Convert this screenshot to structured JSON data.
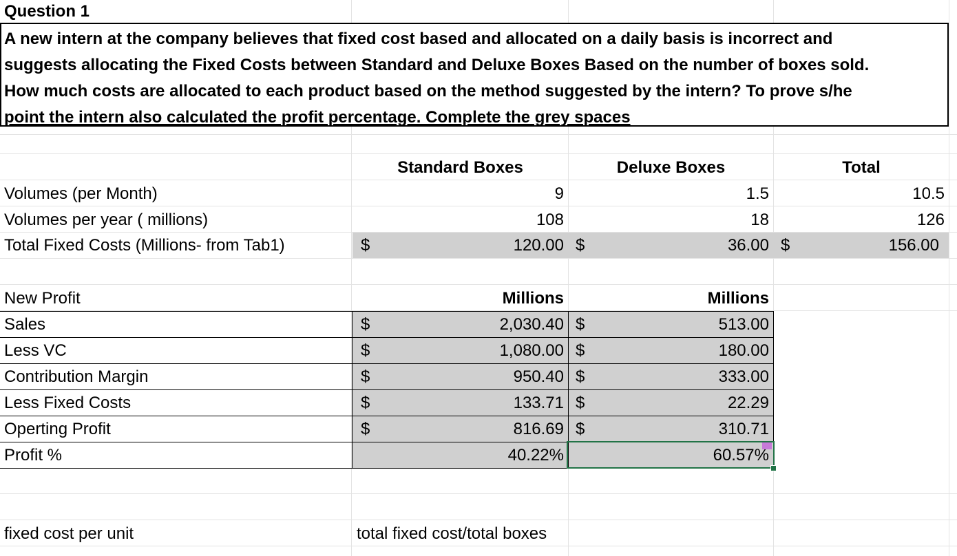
{
  "question": {
    "title": "Question 1",
    "line1": "A new intern at the company believes that fixed cost based and allocated on a daily basis is incorrect and",
    "line2": "suggests allocating the Fixed Costs between Standard  and Deluxe Boxes Based on the number of boxes sold.",
    "line3": "How much costs are allocated to each product based on the method suggested by the intern?  To prove s/he",
    "line4": "point the intern also calculated the profit percentage.   Complete the grey spaces"
  },
  "headers": {
    "standard": "Standard Boxes",
    "deluxe": "Deluxe Boxes",
    "total": "Total"
  },
  "volumes": {
    "month_label": "Volumes (per Month)",
    "month_standard": "9",
    "month_deluxe": "1.5",
    "month_total": "10.5",
    "year_label": "Volumes per year  ( millions)",
    "year_standard": "108",
    "year_deluxe": "18",
    "year_total": "126",
    "fixed_label": "Total Fixed Costs  (Millions- from Tab1)",
    "fixed_standard": "120.00",
    "fixed_deluxe": "36.00",
    "fixed_total": "156.00"
  },
  "currency": "$",
  "profit_table": {
    "title": "New Profit",
    "unit_standard": "Millions",
    "unit_deluxe": "Millions",
    "rows": [
      {
        "label": "Sales",
        "standard": "2,030.40",
        "deluxe": "513.00"
      },
      {
        "label": "Less VC",
        "standard": "1,080.00",
        "deluxe": "180.00"
      },
      {
        "label": "Contribution Margin",
        "standard": "950.40",
        "deluxe": "333.00"
      },
      {
        "label": "Less Fixed Costs",
        "standard": "133.71",
        "deluxe": "22.29"
      },
      {
        "label": "Operting Profit",
        "standard": "816.69",
        "deluxe": "310.71"
      }
    ],
    "profit_pct_label": "Profit %",
    "profit_pct_standard": "40.22%",
    "profit_pct_deluxe": "60.57%"
  },
  "footer": {
    "label": "fixed cost per unit",
    "formula": "total fixed cost/total boxes"
  },
  "colors": {
    "grey_fill": "#d0d0d0",
    "selection": "#217346",
    "comment": "#c77ad9"
  }
}
